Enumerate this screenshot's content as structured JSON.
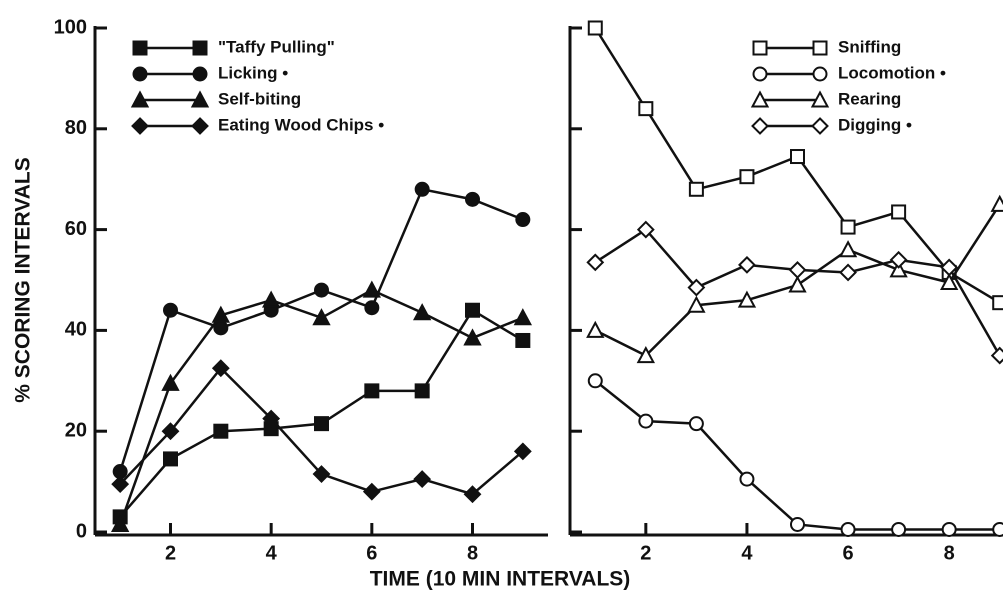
{
  "y_label": "% SCORING INTERVALS",
  "x_label": "TIME (10 MIN INTERVALS)",
  "chart_data": [
    {
      "type": "line",
      "x": [
        1,
        2,
        3,
        4,
        5,
        6,
        7,
        8,
        9
      ],
      "xlim": [
        0.5,
        9.5
      ],
      "xticks": [
        2,
        4,
        6,
        8
      ],
      "ylim": [
        0,
        100
      ],
      "yticks": [
        0,
        20,
        40,
        60,
        80,
        100
      ],
      "marker_fill": "filled",
      "series": [
        {
          "name": "\"Taffy Pulling\"",
          "color": "#111111",
          "marker": "square",
          "values": [
            3,
            14.5,
            20,
            20.5,
            21.5,
            28,
            28,
            44,
            38
          ]
        },
        {
          "name": "Licking •",
          "color": "#111111",
          "marker": "circle",
          "values": [
            12,
            44,
            40.5,
            44,
            48,
            44.5,
            68,
            66,
            62
          ]
        },
        {
          "name": "Self-biting",
          "color": "#111111",
          "marker": "triangle",
          "values": [
            1.5,
            29.5,
            43,
            46,
            42.5,
            48,
            43.5,
            38.5,
            42.5
          ]
        },
        {
          "name": "Eating Wood Chips •",
          "color": "#111111",
          "marker": "diamond",
          "values": [
            9.5,
            20,
            32.5,
            22.5,
            11.5,
            8,
            10.5,
            7.5,
            16
          ]
        }
      ]
    },
    {
      "type": "line",
      "x": [
        1,
        2,
        3,
        4,
        5,
        6,
        7,
        8,
        9
      ],
      "xlim": [
        0.5,
        9.5
      ],
      "xticks": [
        2,
        4,
        6,
        8
      ],
      "ylim": [
        0,
        100
      ],
      "yticks": [
        0,
        20,
        40,
        60,
        80,
        100
      ],
      "marker_fill": "open",
      "series": [
        {
          "name": "Sniffing",
          "color": "#111111",
          "marker": "square",
          "values": [
            100,
            84,
            68,
            70.5,
            74.5,
            60.5,
            63.5,
            51.5,
            45.5
          ]
        },
        {
          "name": "Locomotion •",
          "color": "#111111",
          "marker": "circle",
          "values": [
            30,
            22,
            21.5,
            10.5,
            1.5,
            0.5,
            0.5,
            0.5,
            0.5
          ]
        },
        {
          "name": "Rearing",
          "color": "#111111",
          "marker": "triangle",
          "values": [
            40,
            35,
            45,
            46,
            49,
            56,
            52,
            49.5,
            65
          ]
        },
        {
          "name": "Digging •",
          "color": "#111111",
          "marker": "diamond",
          "values": [
            53.5,
            60,
            48.5,
            53,
            52,
            51.5,
            54,
            52.5,
            35
          ]
        }
      ]
    }
  ]
}
